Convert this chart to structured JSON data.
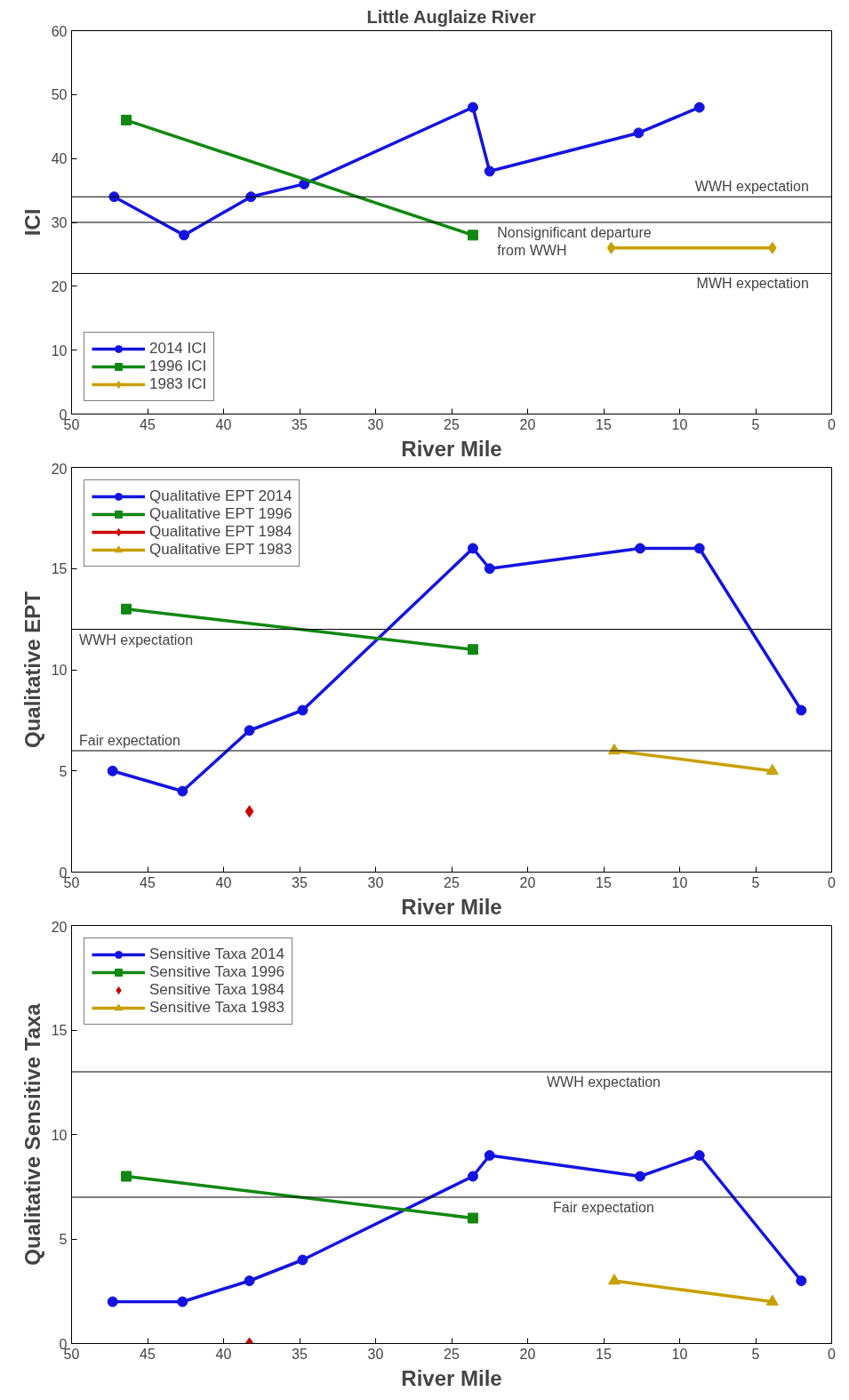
{
  "chart_data": [
    {
      "type": "line",
      "title": "Little Auglaize River",
      "xlabel": "River Mile",
      "ylabel": "ICI",
      "xlim": [
        50,
        0
      ],
      "xticks": [
        50,
        45,
        40,
        35,
        30,
        25,
        20,
        15,
        10,
        5,
        0
      ],
      "ylim": [
        0,
        60
      ],
      "yticks": [
        0,
        10,
        20,
        30,
        40,
        50,
        60
      ],
      "grid": false,
      "legend": "bottom left",
      "series": [
        {
          "name": "2014 ICI",
          "color": "#1414e0",
          "marker": "circle",
          "x": [
            47.2,
            42.6,
            38.2,
            34.7,
            23.6,
            22.5,
            12.7,
            8.7
          ],
          "values": [
            34,
            28,
            34,
            36,
            48,
            38,
            44,
            48
          ]
        },
        {
          "name": "1996 ICI",
          "color": "#118811",
          "marker": "square",
          "x": [
            46.4,
            23.6
          ],
          "values": [
            46,
            28
          ]
        },
        {
          "name": "1983 ICI",
          "color": "#c8a000",
          "marker": "diamond",
          "x": [
            14.5,
            3.9
          ],
          "values": [
            26,
            26
          ]
        }
      ],
      "ref_lines": [
        {
          "axis": "y",
          "value": 34,
          "label": "WWH expectation"
        },
        {
          "axis": "y",
          "value": 30,
          "label": "Nonsignificant departure\nfrom WWH"
        },
        {
          "axis": "y",
          "value": 22,
          "label": "MWH expectation"
        }
      ]
    },
    {
      "type": "line",
      "xlabel": "River Mile",
      "ylabel": "Qualitative EPT",
      "xlim": [
        50,
        0
      ],
      "xticks": [
        50,
        45,
        40,
        35,
        30,
        25,
        20,
        15,
        10,
        5,
        0
      ],
      "ylim": [
        0,
        20
      ],
      "yticks": [
        0,
        5,
        10,
        15,
        20
      ],
      "grid": false,
      "legend": "top left",
      "series": [
        {
          "name": "Qualitative EPT 2014",
          "color": "#1414e0",
          "marker": "circle",
          "x": [
            47.3,
            42.7,
            38.3,
            34.8,
            23.6,
            22.5,
            12.6,
            8.7,
            2.0
          ],
          "values": [
            5,
            4,
            7,
            8,
            16,
            15,
            16,
            16,
            8
          ]
        },
        {
          "name": "Qualitative EPT 1996",
          "color": "#118811",
          "marker": "square",
          "x": [
            46.4,
            23.6
          ],
          "values": [
            13,
            11
          ]
        },
        {
          "name": "Qualitative EPT 1984",
          "color": "#cc0000",
          "marker": "diamond",
          "x": [
            38.3
          ],
          "values": [
            3
          ]
        },
        {
          "name": "Qualitative EPT 1983",
          "color": "#c8a000",
          "marker": "triangle",
          "x": [
            14.3,
            3.9
          ],
          "values": [
            6,
            5
          ]
        }
      ],
      "ref_lines": [
        {
          "axis": "y",
          "value": 12,
          "label": "WWH expectation"
        },
        {
          "axis": "y",
          "value": 6,
          "label": "Fair expectation"
        }
      ]
    },
    {
      "type": "line",
      "xlabel": "River Mile",
      "ylabel": "Qualitative Sensitive Taxa",
      "xlim": [
        50,
        0
      ],
      "xticks": [
        50,
        45,
        40,
        35,
        30,
        25,
        20,
        15,
        10,
        5,
        0
      ],
      "ylim": [
        0,
        20
      ],
      "yticks": [
        0,
        5,
        10,
        15,
        20
      ],
      "grid": false,
      "legend": "top left",
      "series": [
        {
          "name": "Sensitive Taxa 2014",
          "color": "#1414e0",
          "marker": "circle",
          "x": [
            47.3,
            42.7,
            38.3,
            34.8,
            23.6,
            22.5,
            12.6,
            8.7,
            2.0
          ],
          "values": [
            2,
            2,
            3,
            4,
            8,
            9,
            8,
            9,
            3
          ]
        },
        {
          "name": "Sensitive Taxa 1996",
          "color": "#118811",
          "marker": "square",
          "x": [
            46.4,
            23.6
          ],
          "values": [
            8,
            6
          ]
        },
        {
          "name": "Sensitive Taxa 1984",
          "type": "scatter",
          "color": "#cc0000",
          "marker": "diamond",
          "x": [
            38.3
          ],
          "values": [
            0
          ]
        },
        {
          "name": "Sensitive Taxa 1983",
          "color": "#c8a000",
          "marker": "triangle",
          "x": [
            14.3,
            3.9
          ],
          "values": [
            3,
            2
          ]
        }
      ],
      "ref_lines": [
        {
          "axis": "y",
          "value": 13,
          "label": "WWH expectation"
        },
        {
          "axis": "y",
          "value": 7,
          "label": "Fair expectation"
        }
      ]
    }
  ]
}
